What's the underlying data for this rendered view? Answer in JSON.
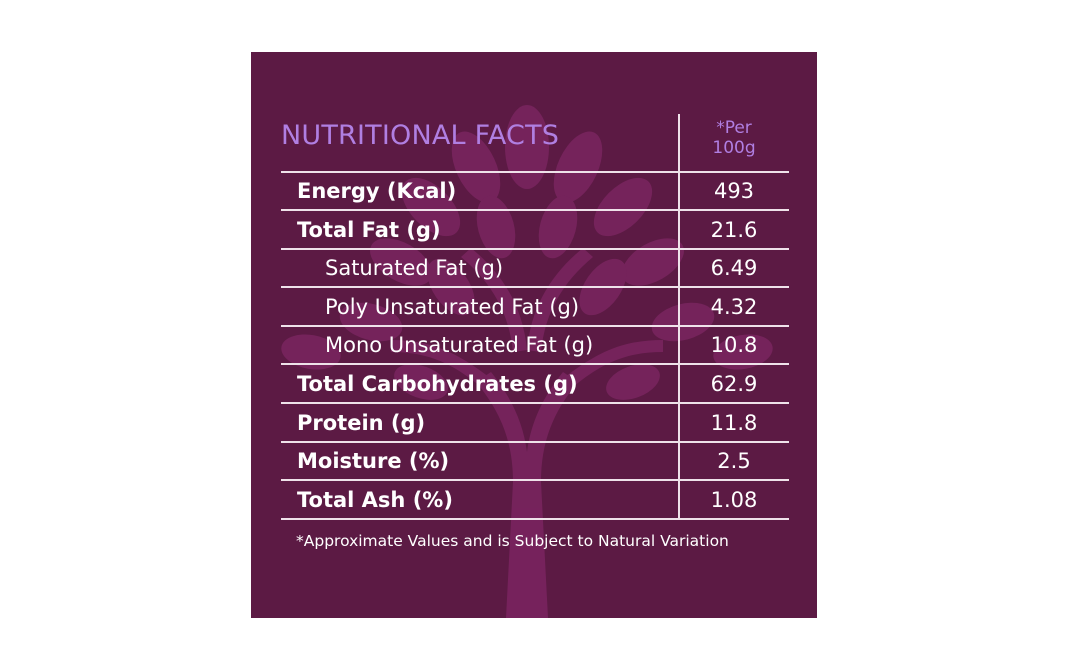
{
  "header": {
    "title": "NUTRITIONAL FACTS",
    "per_line1": "*Per",
    "per_line2": "100g"
  },
  "rows": [
    {
      "label": "Energy (Kcal)",
      "value": "493",
      "bold": true
    },
    {
      "label": "Total Fat (g)",
      "value": "21.6",
      "bold": true
    },
    {
      "label": "Saturated Fat (g)",
      "value": "6.49",
      "bold": false
    },
    {
      "label": "Poly Unsaturated Fat (g)",
      "value": "4.32",
      "bold": false
    },
    {
      "label": "Mono Unsaturated Fat (g)",
      "value": "10.8",
      "bold": false
    },
    {
      "label": "Total Carbohydrates (g)",
      "value": "62.9",
      "bold": true
    },
    {
      "label": "Protein (g)",
      "value": "11.8",
      "bold": true
    },
    {
      "label": "Moisture (%)",
      "value": "2.5",
      "bold": true
    },
    {
      "label": "Total Ash (%)",
      "value": "1.08",
      "bold": true
    }
  ],
  "footnote": "*Approximate Values and is Subject to Natural Variation",
  "colors": {
    "background": "#5c1a44",
    "accent": "#b07fe2",
    "text": "#ffffff",
    "watermark": "#7a2a60"
  },
  "watermark_icon": "tree-icon"
}
